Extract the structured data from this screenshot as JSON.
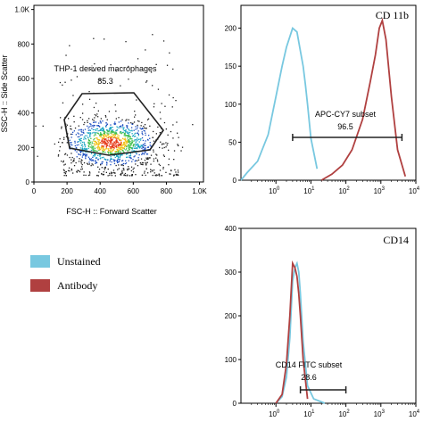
{
  "colors": {
    "unstained": "#78c8e0",
    "antibody": "#b04040",
    "gate": "#222222"
  },
  "legend": [
    {
      "label": "Unstained",
      "color_key": "unstained"
    },
    {
      "label": "Antibody",
      "color_key": "antibody"
    }
  ],
  "chart_data": [
    {
      "type": "scatter",
      "xlabel": "FSC-H :: Forward Scatter",
      "ylabel": "SSC-H :: Side Scatter",
      "xticks": [
        "0",
        "200",
        "400",
        "600",
        "800",
        "1.0K"
      ],
      "yticks": [
        "0",
        "200",
        "400",
        "600",
        "800",
        "1.0K"
      ],
      "xlim": [
        0,
        1024
      ],
      "ylim": [
        0,
        1024
      ],
      "gate": {
        "name": "THP-1 derived macrophages",
        "value": "85.3"
      },
      "density_center": {
        "x": 460,
        "y": 230
      }
    },
    {
      "type": "line",
      "title": "CD 11b",
      "xscale": "log",
      "xticks": [
        "0",
        "1",
        "2",
        "3",
        "4"
      ],
      "yticks": [
        "0",
        "50",
        "100",
        "150",
        "200"
      ],
      "xlim": [
        0.1,
        10000
      ],
      "ylim": [
        0,
        230
      ],
      "gate": {
        "name": "APC-CY7 subset",
        "value": "96.5",
        "range": [
          3,
          4000
        ]
      },
      "series": [
        {
          "color_key": "unstained",
          "x": [
            0.1,
            0.15,
            0.3,
            0.6,
            1,
            1.5,
            2,
            3,
            4,
            5,
            6,
            7,
            8,
            10,
            15
          ],
          "y": [
            0,
            10,
            25,
            60,
            110,
            150,
            175,
            200,
            195,
            170,
            150,
            125,
            100,
            55,
            15
          ]
        },
        {
          "color_key": "antibody",
          "x": [
            20,
            40,
            80,
            150,
            300,
            500,
            700,
            900,
            1100,
            1400,
            2000,
            3000,
            5000
          ],
          "y": [
            0,
            8,
            20,
            40,
            80,
            130,
            165,
            200,
            210,
            185,
            110,
            40,
            5
          ]
        }
      ]
    },
    {
      "type": "line",
      "title": "CD14",
      "xscale": "log",
      "xticks": [
        "0",
        "1",
        "2",
        "3",
        "4"
      ],
      "yticks": [
        "0",
        "100",
        "200",
        "300",
        "400"
      ],
      "xlim": [
        0.1,
        10000
      ],
      "ylim": [
        0,
        400
      ],
      "gate": {
        "name": "CD14 FITC subset",
        "value": "28.6",
        "range": [
          5,
          100
        ]
      },
      "series": [
        {
          "color_key": "unstained",
          "x": [
            1,
            1.5,
            2,
            2.5,
            3,
            3.5,
            4,
            4.5,
            5,
            6,
            8,
            12,
            25
          ],
          "y": [
            0,
            15,
            60,
            150,
            280,
            310,
            320,
            300,
            250,
            140,
            40,
            10,
            0
          ]
        },
        {
          "color_key": "antibody",
          "x": [
            1,
            1.5,
            2,
            2.5,
            3,
            3.5,
            4,
            4.5,
            5,
            6,
            8
          ],
          "y": [
            0,
            20,
            90,
            200,
            320,
            310,
            290,
            250,
            200,
            100,
            10
          ]
        }
      ]
    }
  ]
}
